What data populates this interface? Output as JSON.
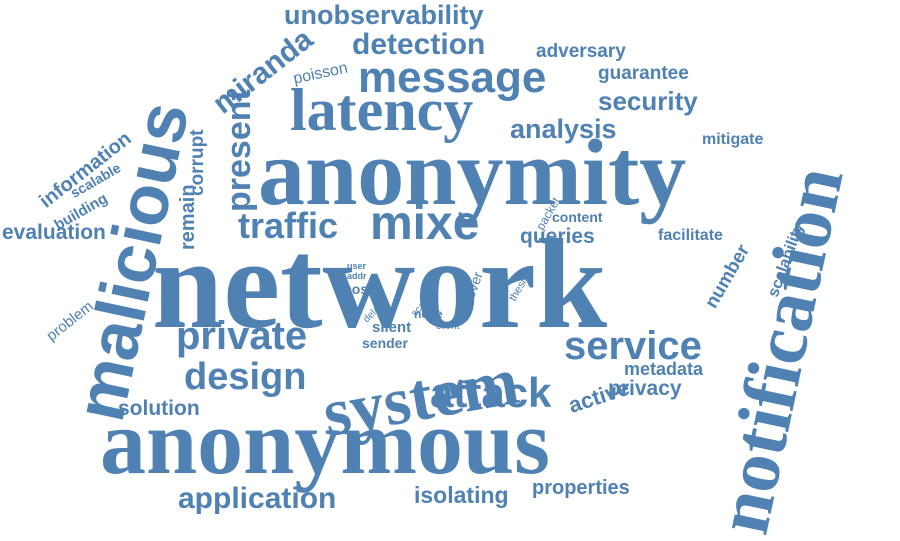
{
  "color": "#4f81b3",
  "words": {
    "unobservability": "unobservability",
    "detection": "detection",
    "adversary": "adversary",
    "message": "message",
    "guarantee": "guarantee",
    "miranda": "miranda",
    "poisson": "poisson",
    "latency": "latency",
    "security": "security",
    "analysis": "analysis",
    "mitigate": "mitigate",
    "information": "information",
    "scalable": "scalable",
    "corrupt": "corrupt",
    "present": "present",
    "anonymity": "anonymity",
    "malicious": "malicious",
    "notification": "notification",
    "building": "building",
    "remain": "remain",
    "traffic": "traffic",
    "mixe": "mixe",
    "packet": "packet",
    "content": "content",
    "queries": "queries",
    "facilitate": "facilitate",
    "scalability": "scalability",
    "evaluation": "evaluation",
    "network": "network",
    "user": "user",
    "addr": "addr",
    "cost": "cost",
    "cover": "cover",
    "thesis": "thesis",
    "number": "number",
    "problem": "problem",
    "delay": "delay",
    "scale": "scale",
    "node": "node",
    "client": "client",
    "silent": "silent",
    "sender": "sender",
    "private": "private",
    "system": "system",
    "service": "service",
    "design": "design",
    "metadata": "metadata",
    "active": "active",
    "privacy": "privacy",
    "attack": "attack",
    "solution": "solution",
    "anonymous": "anonymous",
    "application": "application",
    "isolating": "isolating",
    "properties": "properties"
  }
}
